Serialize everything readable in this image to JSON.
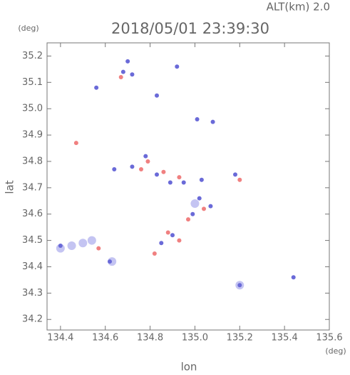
{
  "chart_data": {
    "type": "scatter",
    "title": "2018/05/01 23:39:30",
    "subtitle": "ALT(km) 2.0",
    "x_label": "lon",
    "y_label": "lat",
    "x_unit": "(deg)",
    "y_unit": "(deg)",
    "xlim": [
      134.34,
      135.6
    ],
    "ylim": [
      34.16,
      35.25
    ],
    "xticks": [
      134.4,
      134.6,
      134.8,
      {
        "value": 135.0,
        "label": "135.0"
      },
      135.2,
      135.4,
      135.6
    ],
    "yticks": [
      34.2,
      34.3,
      34.4,
      34.5,
      34.6,
      34.7,
      34.8,
      34.9,
      {
        "value": 35.0,
        "label": "35.0"
      },
      35.1,
      35.2
    ],
    "series": [
      {
        "color": "#c4c4f2",
        "size": 6,
        "x": [
          134.5,
          134.45,
          134.54,
          134.4,
          134.63,
          135.0,
          135.2
        ],
        "y": [
          34.49,
          34.48,
          34.5,
          34.47,
          34.42,
          34.64,
          34.33
        ]
      },
      {
        "color": "#6a6ad8",
        "size": 3,
        "x": [
          134.7,
          134.68,
          134.72,
          134.56,
          134.83,
          135.01,
          135.08,
          134.64,
          134.72,
          134.78,
          134.83,
          134.89,
          134.95,
          135.03,
          135.02,
          135.07,
          134.99,
          134.9,
          134.85,
          134.4,
          134.62,
          135.2,
          135.44,
          135.18,
          134.92
        ],
        "y": [
          35.18,
          35.14,
          35.13,
          35.08,
          35.05,
          34.96,
          34.95,
          34.77,
          34.78,
          34.82,
          34.75,
          34.72,
          34.72,
          34.73,
          34.66,
          34.63,
          34.6,
          34.52,
          34.49,
          34.48,
          34.42,
          34.33,
          34.36,
          34.75,
          35.16
        ]
      },
      {
        "color": "#f08080",
        "size": 3,
        "x": [
          134.67,
          134.79,
          134.86,
          134.76,
          134.93,
          135.04,
          134.97,
          134.88,
          134.93,
          134.82,
          134.57,
          135.2,
          134.47
        ],
        "y": [
          35.12,
          34.8,
          34.76,
          34.77,
          34.74,
          34.62,
          34.58,
          34.53,
          34.5,
          34.45,
          34.47,
          34.73,
          34.87
        ]
      }
    ]
  }
}
